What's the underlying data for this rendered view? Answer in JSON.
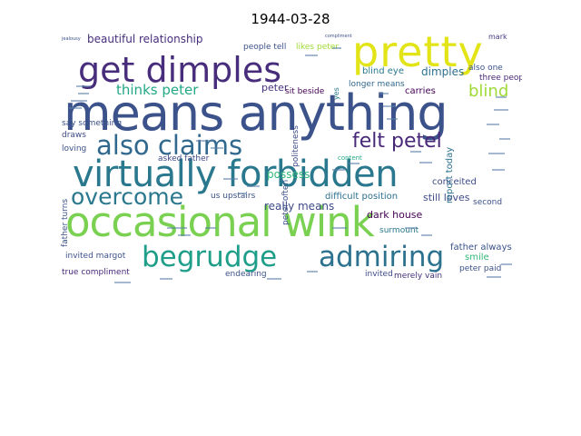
{
  "title": "1944-03-28",
  "words": {
    "means_anything": "means anything",
    "occasional_wink": "occasional wink",
    "virtually_forbidden": "virtually forbidden",
    "get_dimples": "get dimples",
    "pretty": "pretty",
    "begrudge": "begrudge",
    "admiring": "admiring",
    "also_claims": "also claims",
    "overcome": "overcome",
    "felt_petel": "felt petel",
    "thinks_peter": "thinks peter",
    "blind": "blind",
    "beautiful_relationship": "beautiful relationship",
    "possess": "possess",
    "peter_sm": "peter",
    "really_means": "really means",
    "dark_house": "dark house",
    "still_loves": "still loves",
    "difficult_position": "difficult position",
    "dimples": "dimples",
    "blind_eye": "blind eye",
    "longer_means": "longer means",
    "carries": "carries",
    "three_people": "three people",
    "also_one": "also one",
    "mark": "mark",
    "second": "second",
    "report_today": "report today",
    "conceited": "conceited",
    "father_always": "father always",
    "smile": "smile",
    "peter_paid": "peter paid",
    "surmount": "surmount",
    "merely_vain": "merely vain",
    "invited": "invited",
    "endearing": "endearing",
    "true_compliment": "true compliment",
    "invited_margot": "invited margot",
    "asked_father": "asked father",
    "say_something": "say something",
    "draws": "draws",
    "loving": "loving",
    "us_upstairs": "us upstairs",
    "people_tell": "people tell",
    "likes_peter": "likes peter",
    "sit_beside": "sit beside",
    "peter_often": "peter often",
    "politeness": "politeness",
    "father_turns": "father turns",
    "yes": "yes",
    "jealousy": "jealousy",
    "compliment": "compliment",
    "content": "content"
  }
}
